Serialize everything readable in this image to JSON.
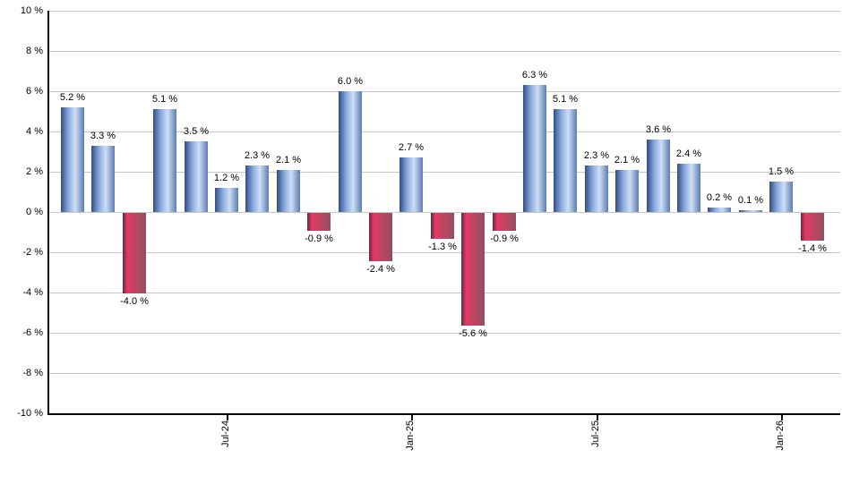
{
  "chart_data": {
    "type": "bar",
    "title": "",
    "xlabel": "",
    "ylabel": "",
    "unit": "%",
    "ylim": [
      -10,
      10
    ],
    "ytick_step": 2,
    "grid": true,
    "legend": "none",
    "y_tick_labels": [
      "10 %",
      "8 %",
      "6 %",
      "4 %",
      "2 %",
      "0 %",
      "-2 %",
      "-4 %",
      "-6 %",
      "-8 %",
      "-10 %"
    ],
    "values": [
      5.2,
      3.3,
      -4.0,
      5.1,
      3.5,
      1.2,
      2.3,
      2.1,
      -0.9,
      6.0,
      -2.4,
      2.7,
      -1.3,
      -5.6,
      -0.9,
      6.3,
      5.1,
      2.3,
      2.1,
      3.6,
      2.4,
      0.2,
      0.1,
      1.5,
      -1.4
    ],
    "bar_labels": [
      "5.2 %",
      "3.3 %",
      "-4.0 %",
      "5.1 %",
      "3.5 %",
      "1.2 %",
      "2.3 %",
      "2.1 %",
      "-0.9 %",
      "6.0 %",
      "-2.4 %",
      "2.7 %",
      "-1.3 %",
      "-5.6 %",
      "-0.9 %",
      "6.3 %",
      "5.1 %",
      "2.3 %",
      "2.1 %",
      "3.6 %",
      "2.4 %",
      "0.2 %",
      "0.1 %",
      "1.5 %",
      "-1.4 %"
    ],
    "x_ticks": [
      {
        "index": 5,
        "label": "Jul-24"
      },
      {
        "index": 11,
        "label": "Jan-25"
      },
      {
        "index": 17,
        "label": "Jul-25"
      },
      {
        "index": 23,
        "label": "Jan-26"
      }
    ],
    "colors": {
      "positive_gradient": [
        "#2d4e86",
        "#89a8da",
        "#cddef5",
        "#5d7db1"
      ],
      "negative_gradient": [
        "#7a1f3d",
        "#e23a64",
        "#b04a60",
        "#8f4f62"
      ],
      "gridline": "#c6c6c6",
      "axis": "#000000",
      "label_text": "#000000",
      "background": "#ffffff"
    }
  }
}
